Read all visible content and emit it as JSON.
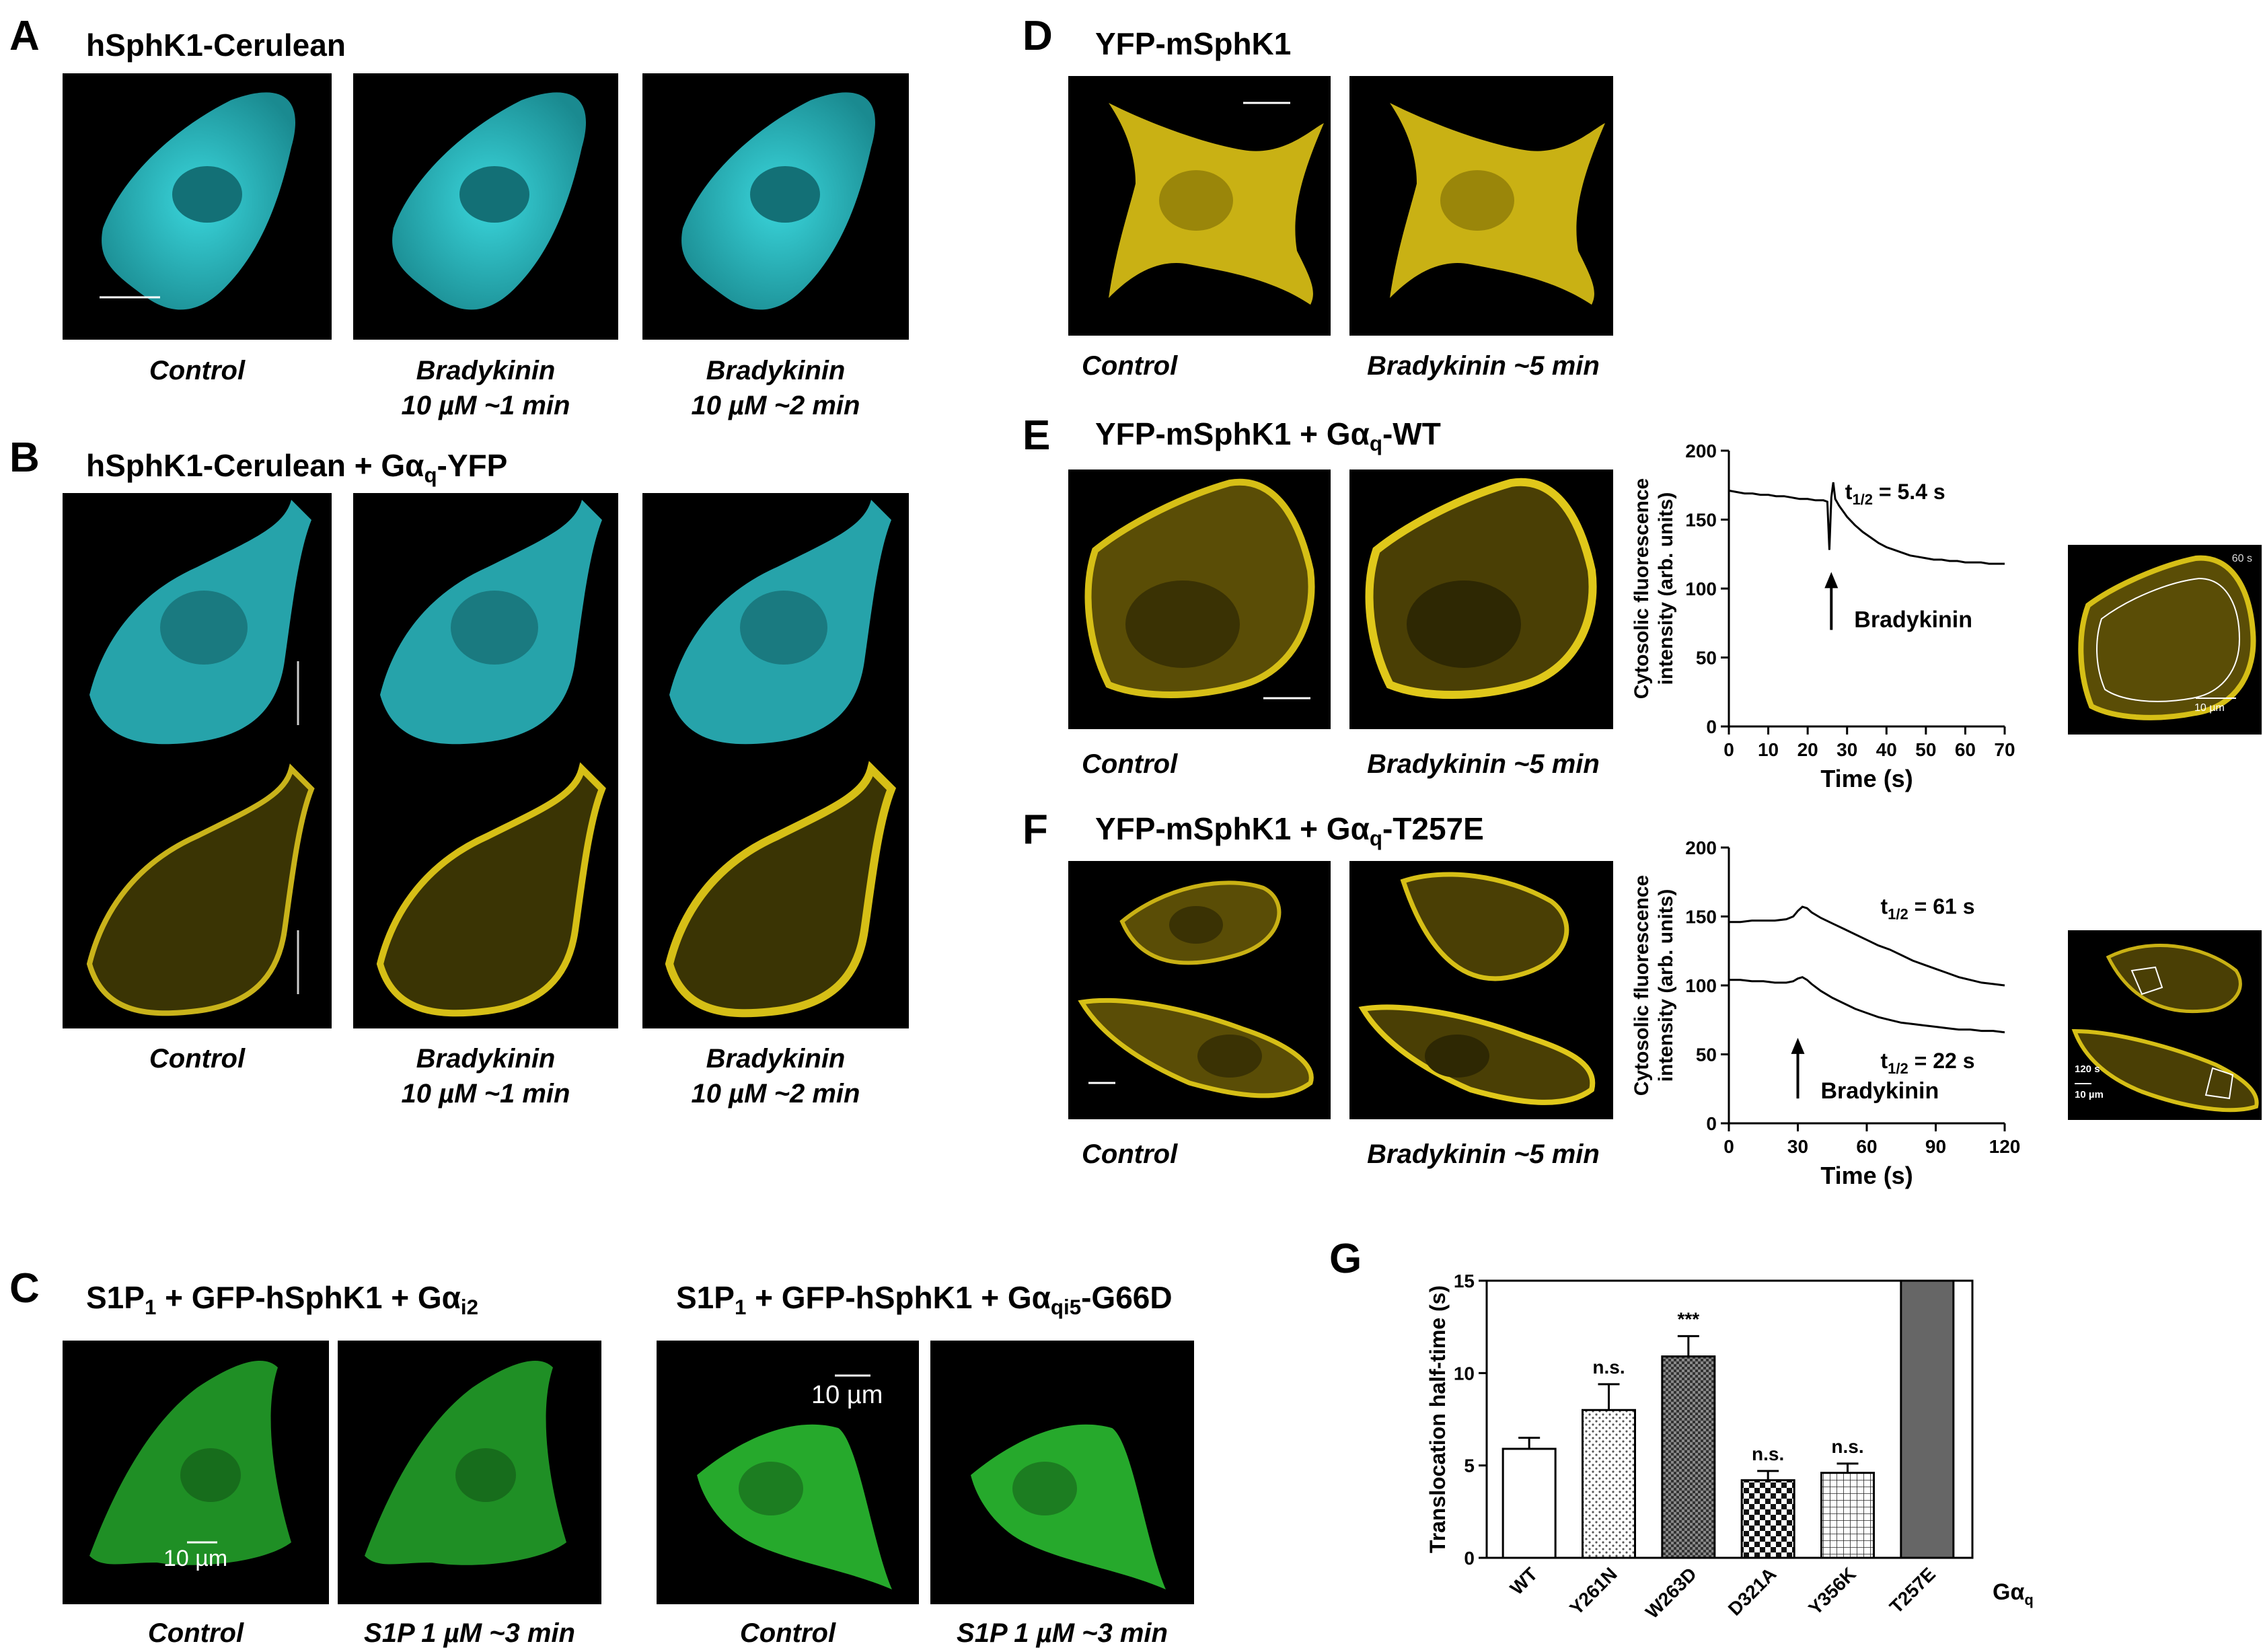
{
  "colors": {
    "cyan": "#34c6cc",
    "yellow": "#d6bf16",
    "green": "#2da830",
    "gray_bar": "#666666"
  },
  "panel_A": {
    "letter": "A",
    "title": "hSphK1-Cerulean",
    "captions": [
      "Control",
      "Bradykinin",
      "10 µM ~1 min",
      "Bradykinin",
      "10 µM ~2 min"
    ]
  },
  "panel_B": {
    "letter": "B",
    "title_main": "hSphK1-Cerulean + Gα",
    "title_sub": "q",
    "title_end": "-YFP",
    "captions": [
      "Control",
      "Bradykinin",
      "10 µM ~1 min",
      "Bradykinin",
      "10 µM ~2 min"
    ]
  },
  "panel_C": {
    "letter": "C",
    "title1_a": "S1P",
    "title1_sub1": "1",
    "title1_b": " + GFP-hSphK1 + Gα",
    "title1_sub2": "i2",
    "title2_a": "S1P",
    "title2_sub1": "1",
    "title2_b": " + GFP-hSphK1 + Gα",
    "title2_sub2": "qi5",
    "title2_c": "-G66D",
    "scale_label": "10 µm",
    "captions": [
      "Control",
      "S1P 1 µM ~3 min",
      "Control",
      "S1P 1 µM ~3 min"
    ]
  },
  "panel_D": {
    "letter": "D",
    "title": "YFP-mSphK1",
    "captions": [
      "Control",
      "Bradykinin ~5 min"
    ]
  },
  "panel_E": {
    "letter": "E",
    "title_main": "YFP-mSphK1 + Gα",
    "title_sub": "q",
    "title_end": "-WT",
    "captions": [
      "Control",
      "Bradykinin ~5 min"
    ],
    "inset_time": "60 s",
    "inset_scale": "10 µm"
  },
  "panel_F": {
    "letter": "F",
    "title_main": "YFP-mSphK1 + Gα",
    "title_sub": "q",
    "title_end": "-T257E",
    "captions": [
      "Control",
      "Bradykinin ~5 min"
    ],
    "inset_time": "120 s",
    "inset_scale": "10 µm"
  },
  "panel_G": {
    "letter": "G"
  },
  "chart_data": [
    {
      "type": "line",
      "panel": "E",
      "ylabel_line1": "Cytosolic fluorescence",
      "ylabel_line2": "intensity (arb. units)",
      "xlabel": "Time (s)",
      "xlim": [
        0,
        70
      ],
      "ylim": [
        0,
        200
      ],
      "xticks": [
        0,
        10,
        20,
        30,
        40,
        50,
        60,
        70
      ],
      "yticks": [
        0,
        50,
        100,
        150,
        200
      ],
      "grid": false,
      "annotation_t_main": "t",
      "annotation_t_sub": "1/2",
      "annotation_t_value": " = 5.4 s",
      "annotation_arrow": "Bradykinin",
      "arrow_x": 26,
      "series": [
        {
          "x": [
            0,
            2,
            4,
            6,
            8,
            10,
            12,
            14,
            16,
            18,
            20,
            22,
            24,
            25,
            25.5,
            26,
            26.5,
            27,
            28,
            29,
            30,
            32,
            34,
            36,
            38,
            40,
            42,
            44,
            46,
            48,
            50,
            52,
            54,
            56,
            58,
            60,
            62,
            64,
            66,
            68,
            70
          ],
          "y": [
            171,
            170,
            169,
            169,
            168,
            168,
            167,
            167,
            166,
            165,
            165,
            164,
            164,
            163,
            128,
            166,
            177,
            165,
            160,
            156,
            152,
            146,
            141,
            137,
            133,
            130,
            128,
            126,
            124,
            123,
            122,
            121,
            121,
            120,
            120,
            119,
            119,
            119,
            118,
            118,
            118
          ]
        }
      ]
    },
    {
      "type": "line",
      "panel": "F",
      "ylabel_line1": "Cytosolic fluorescence",
      "ylabel_line2": "intensity (arb. units)",
      "xlabel": "Time (s)",
      "xlim": [
        0,
        120
      ],
      "ylim": [
        0,
        200
      ],
      "xticks": [
        0,
        30,
        60,
        90,
        120
      ],
      "yticks": [
        0,
        50,
        100,
        150,
        200
      ],
      "grid": false,
      "annotation_top_main": "t",
      "annotation_top_sub": "1/2",
      "annotation_top_value": " = 61 s",
      "annotation_bottom_main": "t",
      "annotation_bottom_sub": "1/2",
      "annotation_bottom_value": " = 22 s",
      "annotation_arrow": "Bradykinin",
      "arrow_x": 30,
      "series": [
        {
          "x": [
            0,
            5,
            10,
            15,
            20,
            25,
            28,
            30,
            32,
            34,
            36,
            40,
            45,
            50,
            55,
            60,
            65,
            70,
            75,
            80,
            85,
            90,
            95,
            100,
            105,
            110,
            115,
            120
          ],
          "y": [
            146,
            146,
            147,
            147,
            147,
            148,
            150,
            154,
            157,
            156,
            153,
            149,
            145,
            141,
            137,
            133,
            129,
            126,
            122,
            118,
            115,
            112,
            109,
            106,
            104,
            102,
            101,
            100
          ]
        },
        {
          "x": [
            0,
            5,
            10,
            15,
            20,
            25,
            28,
            30,
            32,
            34,
            36,
            40,
            45,
            50,
            55,
            60,
            65,
            70,
            75,
            80,
            85,
            90,
            95,
            100,
            105,
            110,
            115,
            120
          ],
          "y": [
            104,
            104,
            103,
            103,
            102,
            102,
            103,
            105,
            106,
            104,
            101,
            96,
            91,
            87,
            83,
            80,
            77,
            75,
            73,
            72,
            71,
            70,
            69,
            68,
            68,
            67,
            67,
            66
          ]
        }
      ]
    },
    {
      "type": "bar",
      "panel": "G",
      "ylabel": "Translocation half-time (s)",
      "xlabel_main": "Gα",
      "xlabel_sub": "q",
      "categories": [
        "WT",
        "Y261N",
        "W263D",
        "D321A",
        "Y356K",
        "T257E"
      ],
      "values": [
        5.9,
        8.0,
        10.9,
        4.2,
        4.6,
        15
      ],
      "errors": [
        0.6,
        1.4,
        1.1,
        0.5,
        0.5,
        0
      ],
      "significance": [
        "",
        "n.s.",
        "***",
        "n.s.",
        "n.s.",
        ""
      ],
      "patterns": [
        "none",
        "dots",
        "dense-checker",
        "checker",
        "grid",
        "solid-gray"
      ],
      "ylim": [
        0,
        15
      ],
      "yticks": [
        0,
        5,
        10,
        15
      ],
      "grid": false
    }
  ]
}
